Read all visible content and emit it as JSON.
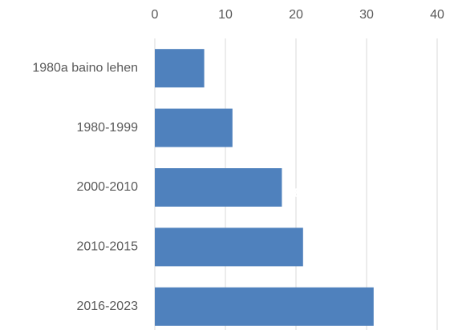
{
  "chart_data": {
    "type": "bar",
    "orientation": "horizontal",
    "categories": [
      "1980a baino lehen",
      "1980-1999",
      "2000-2010",
      "2010-2015",
      "2016-2023"
    ],
    "values": [
      7,
      11,
      18,
      21,
      31
    ],
    "color": "#4f81bd",
    "xlim": [
      0,
      40
    ],
    "xticks": [
      0,
      10,
      20,
      30,
      40
    ],
    "grid": true,
    "data_labels": true,
    "data_label_color": "#ffffff"
  }
}
